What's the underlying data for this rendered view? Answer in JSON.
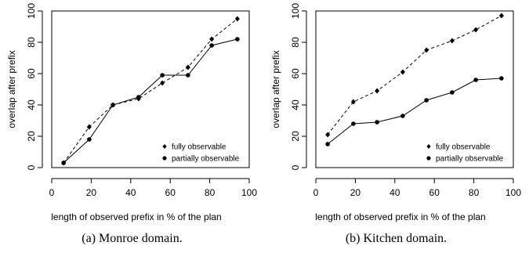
{
  "chart_data": [
    {
      "type": "line",
      "caption": "(a) Monroe domain.",
      "xlabel": "length of observed prefix in % of the plan",
      "ylabel": "overlap after prefix",
      "xlim": [
        0,
        100
      ],
      "ylim": [
        0,
        100
      ],
      "xticks": [
        0,
        20,
        40,
        60,
        80,
        100
      ],
      "yticks": [
        0,
        20,
        40,
        60,
        80,
        100
      ],
      "grid": false,
      "legend_position": "bottom-right",
      "series": [
        {
          "name": "fully observable",
          "line_style": "dashed",
          "marker": "diamond",
          "x": [
            6,
            19,
            31,
            44,
            56,
            69,
            81,
            94
          ],
          "y": [
            3,
            26,
            40,
            44,
            54,
            64,
            82,
            95
          ]
        },
        {
          "name": "partially observable",
          "line_style": "solid",
          "marker": "circle",
          "x": [
            6,
            19,
            31,
            44,
            56,
            69,
            81,
            94
          ],
          "y": [
            3,
            18,
            40,
            45,
            59,
            59,
            78,
            82
          ]
        }
      ]
    },
    {
      "type": "line",
      "caption": "(b) Kitchen domain.",
      "xlabel": "length of observed prefix in % of the plan",
      "ylabel": "overlap after prefix",
      "xlim": [
        0,
        100
      ],
      "ylim": [
        0,
        100
      ],
      "xticks": [
        0,
        20,
        40,
        60,
        80,
        100
      ],
      "yticks": [
        0,
        20,
        40,
        60,
        80,
        100
      ],
      "grid": false,
      "legend_position": "bottom-right",
      "series": [
        {
          "name": "fully observable",
          "line_style": "dashed",
          "marker": "diamond",
          "x": [
            6,
            19,
            31,
            44,
            56,
            69,
            81,
            94
          ],
          "y": [
            21,
            42,
            49,
            61,
            75,
            81,
            88,
            97
          ]
        },
        {
          "name": "partially observable",
          "line_style": "solid",
          "marker": "circle",
          "x": [
            6,
            19,
            31,
            44,
            56,
            69,
            81,
            94
          ],
          "y": [
            15,
            28,
            29,
            33,
            43,
            48,
            56,
            57
          ]
        }
      ]
    }
  ]
}
